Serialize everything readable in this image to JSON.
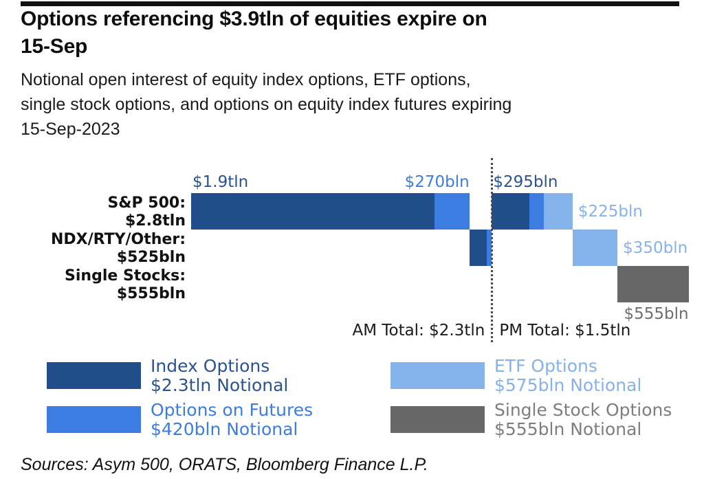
{
  "header": {
    "title_lines": [
      "Options referencing $3.9tln of equities expire on",
      "15-Sep"
    ],
    "subtitle_lines": [
      "Notional open interest of equity index options, ETF options,",
      "single stock options, and options on equity index futures expiring",
      "15-Sep-2023"
    ]
  },
  "chart_data": {
    "type": "bar",
    "subtype": "cascading-waterfall-horizontal",
    "title": "Options referencing $3.9tln of equities expire on 15-Sep",
    "unit": "USD bln notional",
    "grand_total_label": "$3.9tln",
    "grid": "off",
    "axes": "none (value labels on segments)",
    "rows": [
      {
        "label_line1": "S&P 500:",
        "label_line2": "$2.8tln",
        "total_bln": 2800
      },
      {
        "label_line1": "NDX/RTY/Other:",
        "label_line2": "$525bln",
        "total_bln": 525
      },
      {
        "label_line1": "Single Stocks:",
        "label_line2": "$555bln",
        "total_bln": 555
      }
    ],
    "series": {
      "index_options": {
        "name": "Index Options",
        "color": "#214E8B",
        "label_color": "#2B5391"
      },
      "options_on_futures": {
        "name": "Options on Futures",
        "color": "#3D7CE0",
        "label_color": "#3D7CE0"
      },
      "etf_options": {
        "name": "ETF Options",
        "color": "#86B2EC",
        "label_color": "#86B2EC"
      },
      "single_stock_options": {
        "name": "Single Stock Options",
        "color": "#676767",
        "label_color": "#6E6E6E"
      }
    },
    "segments": [
      {
        "row": 0,
        "series": "index_options",
        "session": "AM",
        "value": 1900,
        "label": "$1.9tln",
        "label_pos": "above-left"
      },
      {
        "row": 0,
        "series": "options_on_futures",
        "session": "AM",
        "value": 270,
        "label": "$270bln",
        "label_pos": "above-right"
      },
      {
        "row": 1,
        "series": "index_options",
        "session": "AM",
        "value": 135,
        "label": ""
      },
      {
        "row": 1,
        "series": "options_on_futures",
        "session": "AM",
        "value": 40,
        "label": ""
      },
      {
        "row": 0,
        "series": "index_options",
        "session": "PM",
        "value": 295,
        "label": "$295bln",
        "label_pos": "above-left"
      },
      {
        "row": 0,
        "series": "options_on_futures",
        "session": "PM",
        "value": 110,
        "label": ""
      },
      {
        "row": 0,
        "series": "etf_options",
        "session": "PM",
        "value": 225,
        "label": "$225bln",
        "label_pos": "right"
      },
      {
        "row": 1,
        "series": "etf_options",
        "session": "PM",
        "value": 350,
        "label": "$350bln",
        "label_pos": "right"
      },
      {
        "row": 2,
        "series": "single_stock_options",
        "session": "PM",
        "value": 555,
        "label": "$555bln",
        "label_pos": "below-right"
      }
    ],
    "divider": {
      "am_label": "AM Total: $2.3tln",
      "pm_label": "PM Total: $1.5tln"
    }
  },
  "legend": {
    "items": [
      {
        "line1": "Index Options",
        "line2": "$2.3tln Notional",
        "swatch": "#214E8B",
        "text_color": "#2B5391"
      },
      {
        "line1": "Options on Futures",
        "line2": "$420bln Notional",
        "swatch": "#3D7CE0",
        "text_color": "#3D7CE0"
      },
      {
        "line1": "ETF Options",
        "line2": "$575bln Notional",
        "swatch": "#86B2EC",
        "text_color": "#86B2EC"
      },
      {
        "line1": "Single Stock Options",
        "line2": "$555bln Notional",
        "swatch": "#676767",
        "text_color": "#7E7E7E"
      }
    ]
  },
  "footer": {
    "sources": "Sources: Asym 500, ORATS, Bloomberg Finance L.P."
  }
}
